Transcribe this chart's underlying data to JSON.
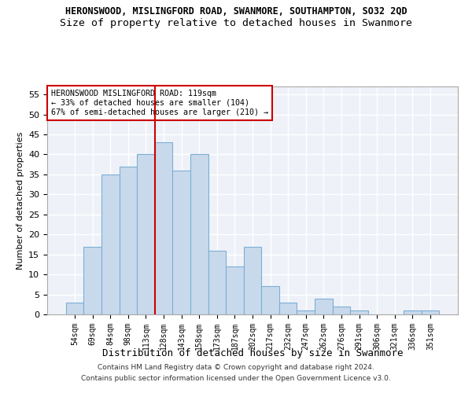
{
  "title": "HERONSWOOD, MISLINGFORD ROAD, SWANMORE, SOUTHAMPTON, SO32 2QD",
  "subtitle": "Size of property relative to detached houses in Swanmore",
  "xlabel": "Distribution of detached houses by size in Swanmore",
  "ylabel": "Number of detached properties",
  "bar_labels": [
    "54sqm",
    "69sqm",
    "84sqm",
    "98sqm",
    "113sqm",
    "128sqm",
    "143sqm",
    "158sqm",
    "173sqm",
    "187sqm",
    "202sqm",
    "217sqm",
    "232sqm",
    "247sqm",
    "262sqm",
    "276sqm",
    "291sqm",
    "306sqm",
    "321sqm",
    "336sqm",
    "351sqm"
  ],
  "bar_values": [
    3,
    17,
    35,
    37,
    40,
    43,
    36,
    40,
    16,
    12,
    17,
    7,
    3,
    1,
    4,
    2,
    1,
    0,
    0,
    1,
    1
  ],
  "bar_color": "#c9d9ec",
  "bar_edge_color": "#7bafd4",
  "ylim": [
    0,
    57
  ],
  "yticks": [
    0,
    5,
    10,
    15,
    20,
    25,
    30,
    35,
    40,
    45,
    50,
    55
  ],
  "vline_x": 4.5,
  "vline_color": "#cc0000",
  "annotation_title": "HERONSWOOD MISLINGFORD ROAD: 119sqm",
  "annotation_line1": "← 33% of detached houses are smaller (104)",
  "annotation_line2": "67% of semi-detached houses are larger (210) →",
  "annotation_box_color": "#cc0000",
  "footer1": "Contains HM Land Registry data © Crown copyright and database right 2024.",
  "footer2": "Contains public sector information licensed under the Open Government Licence v3.0.",
  "background_color": "#eef2f8",
  "grid_color": "#ffffff",
  "title_fontsize": 8.5,
  "subtitle_fontsize": 9.5
}
